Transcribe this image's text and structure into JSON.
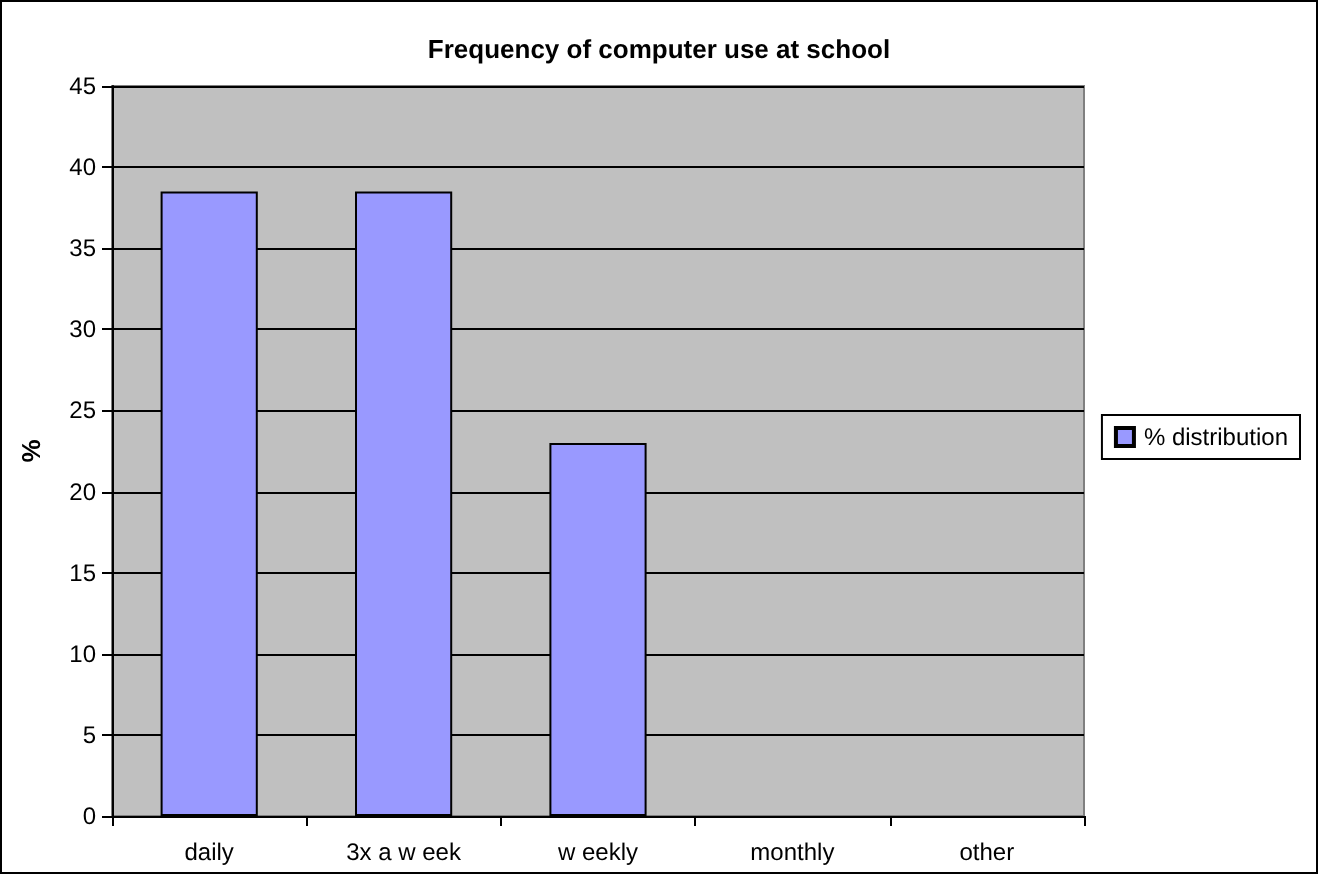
{
  "chart_data": {
    "type": "bar",
    "title": "Frequency of computer use at school",
    "ylabel": "%",
    "categories": [
      "daily",
      "3x a w eek",
      "w eekly",
      "monthly",
      "other"
    ],
    "series": [
      {
        "name": "% distribution",
        "color": "#9999ff",
        "values": [
          38.5,
          38.5,
          23,
          0,
          0
        ]
      }
    ],
    "ylim": [
      0,
      45
    ],
    "yticks": [
      0,
      5,
      10,
      15,
      20,
      25,
      30,
      35,
      40,
      45
    ],
    "grid": "y",
    "legend": "right"
  }
}
